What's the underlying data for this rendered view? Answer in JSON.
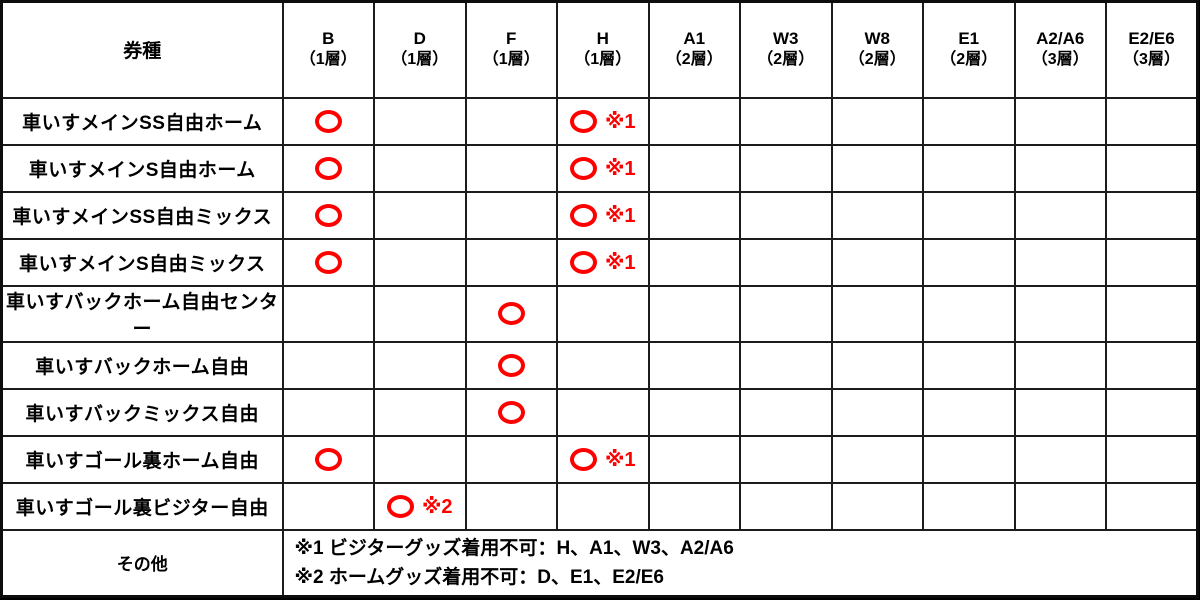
{
  "table": {
    "header": {
      "ticket_type_label": "券種",
      "columns": [
        {
          "code": "B",
          "tier": "（1層）"
        },
        {
          "code": "D",
          "tier": "（1層）"
        },
        {
          "code": "F",
          "tier": "（1層）"
        },
        {
          "code": "H",
          "tier": "（1層）"
        },
        {
          "code": "A1",
          "tier": "（2層）"
        },
        {
          "code": "W3",
          "tier": "（2層）"
        },
        {
          "code": "W8",
          "tier": "（2層）"
        },
        {
          "code": "E1",
          "tier": "（2層）"
        },
        {
          "code": "A2/A6",
          "tier": "（3層）"
        },
        {
          "code": "E2/E6",
          "tier": "（3層）"
        }
      ]
    },
    "rows": [
      {
        "label": "車いすメインSS自由ホーム",
        "shaded": true,
        "cells": {
          "B": {
            "circle": true
          },
          "H": {
            "circle": true,
            "note": "※1"
          }
        }
      },
      {
        "label": "車いすメインS自由ホーム",
        "shaded": false,
        "cells": {
          "B": {
            "circle": true
          },
          "H": {
            "circle": true,
            "note": "※1"
          }
        }
      },
      {
        "label": "車いすメインSS自由ミックス",
        "shaded": true,
        "cells": {
          "B": {
            "circle": true
          },
          "H": {
            "circle": true,
            "note": "※1"
          }
        }
      },
      {
        "label": "車いすメインS自由ミックス",
        "shaded": false,
        "cells": {
          "B": {
            "circle": true
          },
          "H": {
            "circle": true,
            "note": "※1"
          }
        }
      },
      {
        "label": "車いすバックホーム自由センター",
        "shaded": true,
        "cells": {
          "F": {
            "circle": true
          }
        }
      },
      {
        "label": "車いすバックホーム自由",
        "shaded": false,
        "cells": {
          "F": {
            "circle": true
          }
        }
      },
      {
        "label": "車いすバックミックス自由",
        "shaded": true,
        "cells": {
          "F": {
            "circle": true
          }
        }
      },
      {
        "label": "車いすゴール裏ホーム自由",
        "shaded": false,
        "cells": {
          "B": {
            "circle": true
          },
          "H": {
            "circle": true,
            "note": "※1"
          }
        }
      },
      {
        "label": "車いすゴール裏ビジター自由",
        "shaded": true,
        "cells": {
          "D": {
            "circle": true,
            "note": "※2"
          }
        }
      }
    ],
    "footer": {
      "label": "その他",
      "notes": [
        "※1 ビジターグッズ着用不可：H、A1、W3、A2/A6",
        "※2 ホームグッズ着用不可：D、E1、E2/E6"
      ]
    }
  },
  "colors": {
    "row_shade": "#c8deb4",
    "mark_red": "#ff0000",
    "grid_line": "#1c1c1c",
    "canvas_background": "#000000"
  }
}
